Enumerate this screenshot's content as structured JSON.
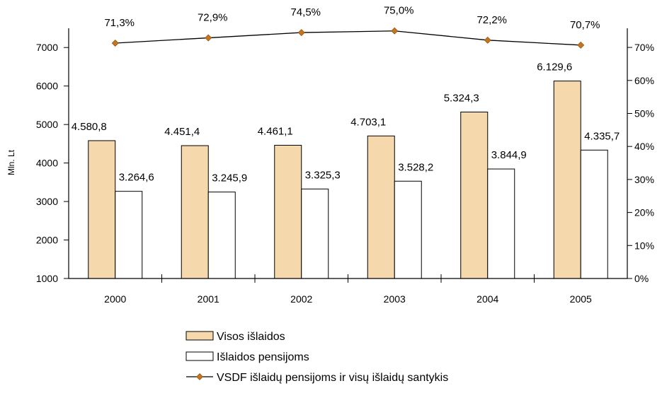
{
  "chart_data": {
    "type": "bar",
    "title": "",
    "ylabel": "Mln. Lt",
    "ylabel_right": "",
    "xlabel": "",
    "categories": [
      "2000",
      "2001",
      "2002",
      "2003",
      "2004",
      "2005"
    ],
    "ylim": [
      1000,
      7500
    ],
    "yticks": [
      1000,
      2000,
      3000,
      4000,
      5000,
      6000,
      7000
    ],
    "ylim_right": [
      0,
      75.8
    ],
    "yticks_right": [
      0,
      10,
      20,
      30,
      40,
      50,
      60,
      70
    ],
    "yticks_right_labels": [
      "0%",
      "10%",
      "20%",
      "30%",
      "40%",
      "50%",
      "60%",
      "70%"
    ],
    "series": [
      {
        "name": "Visos išlaidos",
        "kind": "bar",
        "color": "#f5d8ac",
        "values": [
          4580.8,
          4451.4,
          4461.1,
          4703.1,
          5324.3,
          6129.6
        ],
        "labels": [
          "4.580,8",
          "4.451,4",
          "4.461,1",
          "4.703,1",
          "5.324,3",
          "6.129,6"
        ]
      },
      {
        "name": "Išlaidos pensijoms",
        "kind": "bar",
        "color": "#ffffff",
        "values": [
          3264.6,
          3245.9,
          3325.3,
          3528.2,
          3844.9,
          4335.7
        ],
        "labels": [
          "3.264,6",
          "3.245,9",
          "3.325,3",
          "3.528,2",
          "3.844,9",
          "4.335,7"
        ]
      },
      {
        "name": "VSDF išlaidų pensijoms ir visų išlaidų santykis",
        "kind": "line",
        "axis": "right",
        "color": "#c8741a",
        "values": [
          71.3,
          72.9,
          74.5,
          75.0,
          72.2,
          70.7
        ],
        "labels": [
          "71,3%",
          "72,9%",
          "74,5%",
          "75,0%",
          "72,2%",
          "70,7%"
        ]
      }
    ],
    "grid": false,
    "legend_position": "bottom-center"
  }
}
